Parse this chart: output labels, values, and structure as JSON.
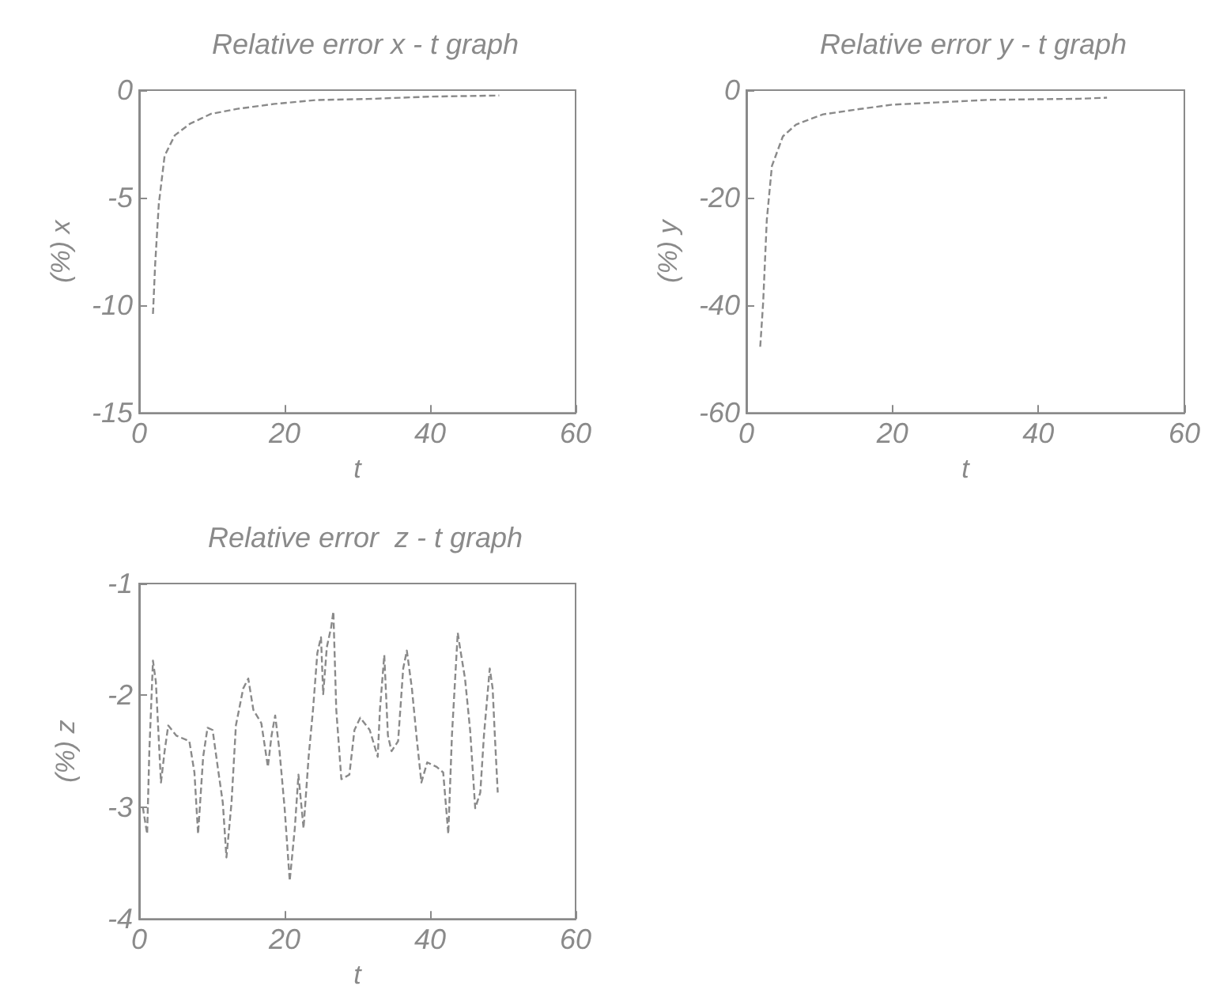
{
  "chart_data": [
    {
      "type": "line",
      "title": "Relative error x - t graph",
      "xlabel": "t",
      "ylabel": "(%) x",
      "xlim": [
        0,
        60
      ],
      "xticks": [
        0,
        20,
        40,
        60
      ],
      "ylim": [
        -15,
        0
      ],
      "yticks": [
        -15,
        -10,
        -5,
        0
      ],
      "grid": false,
      "marker": "none",
      "line_style": "dashed",
      "series": [
        {
          "color": "#8a8a8a",
          "x": [
            1.9,
            2.2,
            2.7,
            3.5,
            4.9,
            7.0,
            9.9,
            13.5,
            18.6,
            24.3,
            31.5,
            40.1,
            49.5
          ],
          "values": [
            -10.4,
            -8.1,
            -5.3,
            -3.05,
            -2.1,
            -1.56,
            -1.1,
            -0.87,
            -0.64,
            -0.46,
            -0.41,
            -0.3,
            -0.25
          ]
        }
      ]
    },
    {
      "type": "line",
      "title": "Relative error y - t graph",
      "xlabel": "t",
      "ylabel": "(%) y",
      "xlim": [
        0,
        60
      ],
      "xticks": [
        0,
        20,
        40,
        60
      ],
      "ylim": [
        -60,
        0
      ],
      "yticks": [
        -60,
        -40,
        -20,
        0
      ],
      "grid": false,
      "marker": "none",
      "line_style": "dashed",
      "series": [
        {
          "color": "#8a8a8a",
          "x": [
            1.9,
            2.3,
            2.8,
            3.5,
            5.0,
            6.8,
            10.5,
            15.6,
            20.0,
            25.9,
            33.2,
            45.7,
            49.4
          ],
          "values": [
            -47.7,
            -39.5,
            -24.1,
            -14.1,
            -8.6,
            -6.4,
            -4.5,
            -3.5,
            -2.7,
            -2.3,
            -1.8,
            -1.6,
            -1.4
          ]
        }
      ]
    },
    {
      "type": "line",
      "title": "Relative error  z - t graph",
      "xlabel": "t",
      "ylabel": "(%) z",
      "xlim": [
        0,
        60
      ],
      "xticks": [
        0,
        20,
        40,
        60
      ],
      "ylim": [
        -4,
        -1
      ],
      "yticks": [
        -4,
        -3,
        -2,
        -1
      ],
      "grid": false,
      "marker": "none",
      "line_style": "dashed",
      "series": [
        {
          "color": "#8a8a8a",
          "x": [
            0.5,
            1.1,
            1.4,
            1.9,
            2.3,
            2.6,
            3.0,
            3.5,
            4.0,
            5.1,
            6.9,
            7.6,
            8.1,
            8.8,
            9.4,
            10.1,
            10.8,
            11.5,
            12.0,
            12.7,
            13.3,
            14.3,
            15.0,
            15.7,
            16.8,
            17.7,
            18.2,
            18.7,
            19.3,
            20.0,
            20.7,
            21.4,
            21.9,
            22.6,
            23.3,
            23.9,
            24.5,
            25.0,
            25.3,
            25.8,
            26.4,
            26.7,
            27.1,
            27.8,
            28.9,
            29.6,
            30.4,
            31.7,
            32.8,
            33.1,
            33.7,
            34.2,
            34.7,
            35.6,
            36.3,
            36.8,
            37.5,
            38.2,
            38.8,
            39.6,
            40.9,
            41.8,
            42.5,
            43.0,
            43.8,
            44.1,
            44.8,
            45.5,
            46.2,
            46.9,
            47.4,
            48.2,
            48.6,
            48.9,
            49.3
          ],
          "values": [
            -3.0,
            -3.24,
            -2.5,
            -1.69,
            -1.88,
            -2.27,
            -2.78,
            -2.5,
            -2.27,
            -2.36,
            -2.41,
            -2.69,
            -3.24,
            -2.55,
            -2.29,
            -2.31,
            -2.64,
            -2.96,
            -3.45,
            -2.96,
            -2.27,
            -1.94,
            -1.85,
            -2.13,
            -2.25,
            -2.64,
            -2.36,
            -2.18,
            -2.5,
            -3.01,
            -3.66,
            -3.19,
            -2.71,
            -3.19,
            -2.55,
            -2.13,
            -1.62,
            -1.48,
            -1.99,
            -1.57,
            -1.39,
            -1.25,
            -2.13,
            -2.75,
            -2.71,
            -2.31,
            -2.2,
            -2.31,
            -2.55,
            -2.13,
            -1.64,
            -2.36,
            -2.5,
            -2.41,
            -1.76,
            -1.6,
            -1.94,
            -2.41,
            -2.78,
            -2.6,
            -2.64,
            -2.69,
            -3.24,
            -2.36,
            -1.44,
            -1.57,
            -1.85,
            -2.31,
            -3.01,
            -2.87,
            -2.36,
            -1.76,
            -1.94,
            -2.36,
            -2.87
          ]
        }
      ]
    }
  ]
}
